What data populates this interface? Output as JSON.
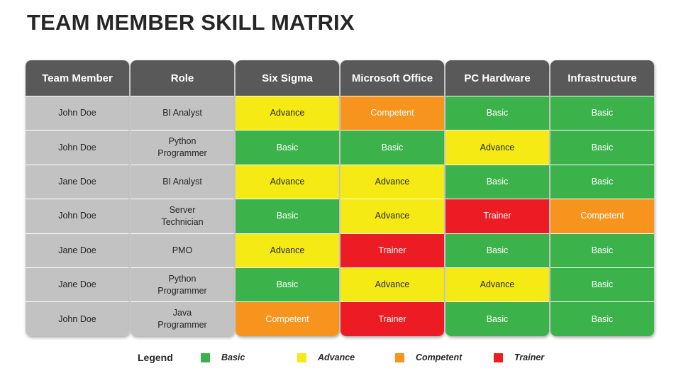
{
  "title": "TEAM MEMBER SKILL MATRIX",
  "columns": [
    "Team Member",
    "Role",
    "Six Sigma",
    "Microsoft Office",
    "PC Hardware",
    "Infrastructure"
  ],
  "rows": [
    {
      "member": "John Doe",
      "role": "BI Analyst",
      "skills": [
        "Advance",
        "Competent",
        "Basic",
        "Basic"
      ]
    },
    {
      "member": "John Doe",
      "role": "Python Programmer",
      "skills": [
        "Basic",
        "Basic",
        "Advance",
        "Basic"
      ]
    },
    {
      "member": "Jane Doe",
      "role": "BI Analyst",
      "skills": [
        "Advance",
        "Advance",
        "Basic",
        "Basic"
      ]
    },
    {
      "member": "John Doe",
      "role": "Server Technician",
      "skills": [
        "Basic",
        "Advance",
        "Trainer",
        "Competent"
      ]
    },
    {
      "member": "Jane Doe",
      "role": "PMO",
      "skills": [
        "Advance",
        "Trainer",
        "Basic",
        "Basic"
      ]
    },
    {
      "member": "Jane Doe",
      "role": "Python Programmer",
      "skills": [
        "Basic",
        "Advance",
        "Advance",
        "Basic"
      ]
    },
    {
      "member": "John Doe",
      "role": "Java Programmer",
      "skills": [
        "Competent",
        "Trainer",
        "Basic",
        "Basic"
      ]
    }
  ],
  "legend": {
    "title": "Legend",
    "items": [
      {
        "label": "Basic",
        "color": "#3cb34a"
      },
      {
        "label": "Advance",
        "color": "#f5ea14"
      },
      {
        "label": "Competent",
        "color": "#f7941d"
      },
      {
        "label": "Trainer",
        "color": "#ed1c24"
      }
    ]
  },
  "colors": {
    "header": "#595959",
    "name_cells": "#c2c2c2"
  }
}
